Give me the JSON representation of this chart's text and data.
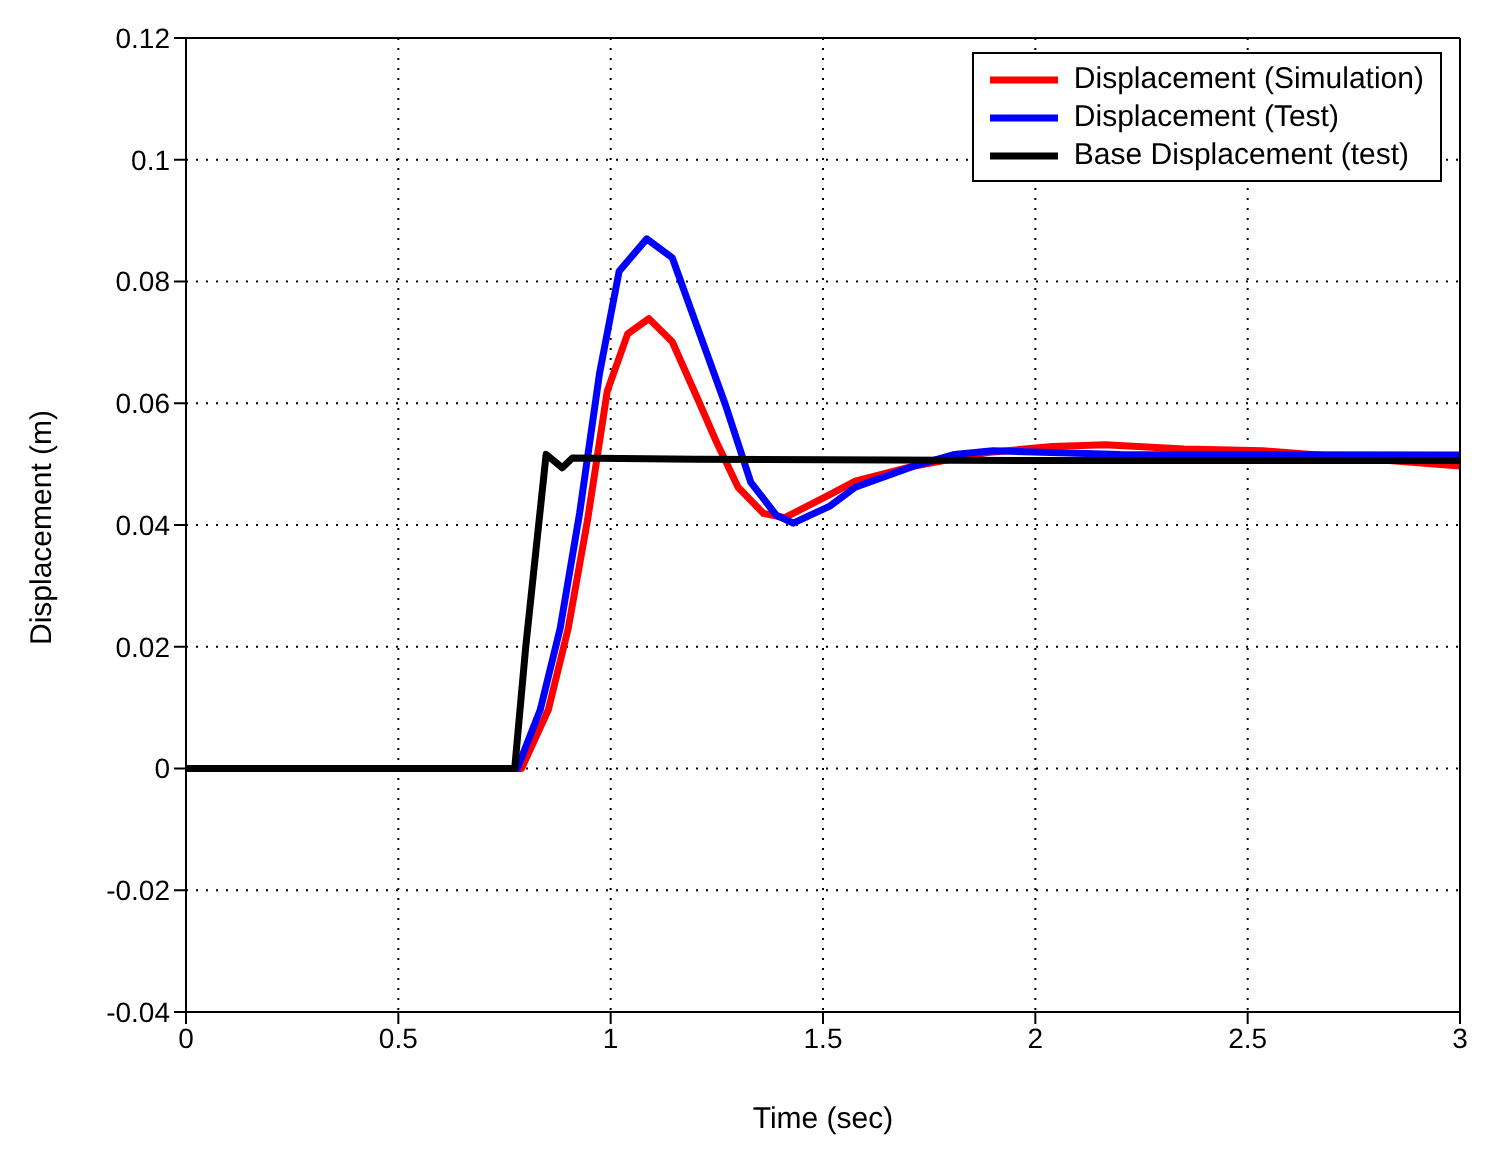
{
  "chart_data": {
    "type": "line",
    "xlabel": "Time (sec)",
    "ylabel": "Displacement (m)",
    "xlim": [
      0,
      3
    ],
    "xticks": [
      0,
      0.5,
      1,
      1.5,
      2,
      2.5,
      3
    ],
    "ylim": [
      -0.04,
      0.12
    ],
    "yticks": [
      -0.04,
      -0.02,
      0,
      0.02,
      0.04,
      0.06,
      0.08,
      0.1,
      0.12
    ],
    "grid": true,
    "legend": "top right",
    "marker": "none",
    "line_style": "solid",
    "series": [
      {
        "name": "Displacement (Simulation)",
        "color": "#ff0000",
        "x": [
          0,
          0.79,
          0.853,
          0.9,
          0.946,
          0.992,
          1.04,
          1.09,
          1.145,
          1.205,
          1.25,
          1.3,
          1.36,
          1.41,
          1.516,
          1.576,
          1.715,
          1.887,
          2.04,
          2.165,
          2.35,
          2.536,
          3
        ],
        "values": [
          0,
          0,
          0.0096,
          0.023,
          0.041,
          0.062,
          0.0714,
          0.0739,
          0.0701,
          0.0607,
          0.0535,
          0.0462,
          0.0419,
          0.0412,
          0.045,
          0.0472,
          0.0497,
          0.0519,
          0.0529,
          0.0532,
          0.0525,
          0.0522,
          0.0497
        ]
      },
      {
        "name": "Displacement (Test)",
        "color": "#0000ff",
        "x": [
          0,
          0.78,
          0.834,
          0.881,
          0.927,
          0.974,
          1.02,
          1.085,
          1.145,
          1.205,
          1.27,
          1.33,
          1.39,
          1.43,
          1.516,
          1.576,
          1.715,
          1.81,
          1.9,
          2.2,
          3
        ],
        "values": [
          0,
          0,
          0.0096,
          0.023,
          0.042,
          0.065,
          0.0817,
          0.087,
          0.0839,
          0.0723,
          0.0598,
          0.047,
          0.0416,
          0.0403,
          0.0431,
          0.0462,
          0.0497,
          0.0516,
          0.0522,
          0.0516,
          0.0515
        ]
      },
      {
        "name": "Base Displacement (test)",
        "color": "#000000",
        "x": [
          0,
          0.774,
          0.8,
          0.848,
          0.886,
          0.91,
          1.2,
          2,
          3
        ],
        "values": [
          0,
          0,
          0.02,
          0.0516,
          0.0494,
          0.051,
          0.0508,
          0.0506,
          0.0506
        ]
      }
    ]
  }
}
